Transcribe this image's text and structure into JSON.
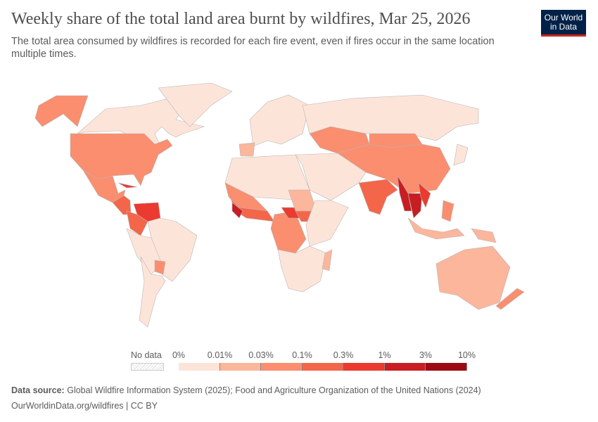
{
  "header": {
    "title": "Weekly share of the total land area burnt by wildfires, Mar 25, 2026",
    "subtitle": "The total area consumed by wildfires is recorded for each fire event, even if fires occur in the same location multiple times.",
    "logo": "Our World in Data"
  },
  "chart_data": {
    "type": "choropleth-map",
    "title": "Weekly share of the total land area burnt by wildfires, Mar 25, 2026",
    "legend": {
      "no_data_label": "No data",
      "ticks": [
        "0%",
        "0.01%",
        "0.03%",
        "0.1%",
        "0.3%",
        "1%",
        "3%",
        "10%"
      ],
      "bin_colors": [
        "#fde4d9",
        "#fbb69c",
        "#fa8e6f",
        "#f4664a",
        "#eb3a2f",
        "#c81d22",
        "#9c0a14"
      ]
    },
    "regions": [
      {
        "name": "Canada",
        "bin": 0
      },
      {
        "name": "Alaska (USA)",
        "bin": 2
      },
      {
        "name": "United States",
        "bin": 2
      },
      {
        "name": "Greenland",
        "bin": 0
      },
      {
        "name": "Mexico",
        "bin": 2
      },
      {
        "name": "Central America",
        "bin": 3
      },
      {
        "name": "Cuba",
        "bin": 4
      },
      {
        "name": "Venezuela",
        "bin": 4
      },
      {
        "name": "Colombia",
        "bin": 3
      },
      {
        "name": "Brazil",
        "bin": 0
      },
      {
        "name": "Peru/Bolivia",
        "bin": 0
      },
      {
        "name": "Paraguay",
        "bin": 2
      },
      {
        "name": "Argentina/Chile",
        "bin": 0
      },
      {
        "name": "Europe",
        "bin": 0
      },
      {
        "name": "Spain",
        "bin": 1
      },
      {
        "name": "Russia",
        "bin": 0
      },
      {
        "name": "Kazakhstan",
        "bin": 2
      },
      {
        "name": "Mongolia",
        "bin": 2
      },
      {
        "name": "China",
        "bin": 2
      },
      {
        "name": "Middle East",
        "bin": 0
      },
      {
        "name": "North Africa",
        "bin": 0
      },
      {
        "name": "West Africa",
        "bin": 3
      },
      {
        "name": "Sierra Leone/Liberia",
        "bin": 5
      },
      {
        "name": "Sahel",
        "bin": 2
      },
      {
        "name": "Central Africa",
        "bin": 2
      },
      {
        "name": "Central African Republic",
        "bin": 4
      },
      {
        "name": "South Sudan",
        "bin": 3
      },
      {
        "name": "Sudan",
        "bin": 1
      },
      {
        "name": "East Africa",
        "bin": 0
      },
      {
        "name": "Southern Africa",
        "bin": 0
      },
      {
        "name": "Madagascar",
        "bin": 1
      },
      {
        "name": "India",
        "bin": 3
      },
      {
        "name": "Myanmar",
        "bin": 5
      },
      {
        "name": "Thailand",
        "bin": 5
      },
      {
        "name": "Laos/Cambodia",
        "bin": 4
      },
      {
        "name": "Philippines",
        "bin": 2
      },
      {
        "name": "Indonesia",
        "bin": 1
      },
      {
        "name": "Papua New Guinea",
        "bin": 1
      },
      {
        "name": "Australia",
        "bin": 1
      },
      {
        "name": "New Zealand",
        "bin": 2
      },
      {
        "name": "Japan",
        "bin": 0
      }
    ]
  },
  "footer": {
    "source_label": "Data source:",
    "source_text": "Global Wildfire Information System (2025); Food and Agriculture Organization of the United Nations (2024)",
    "url_license": "OurWorldinData.org/wildfires | CC BY"
  }
}
